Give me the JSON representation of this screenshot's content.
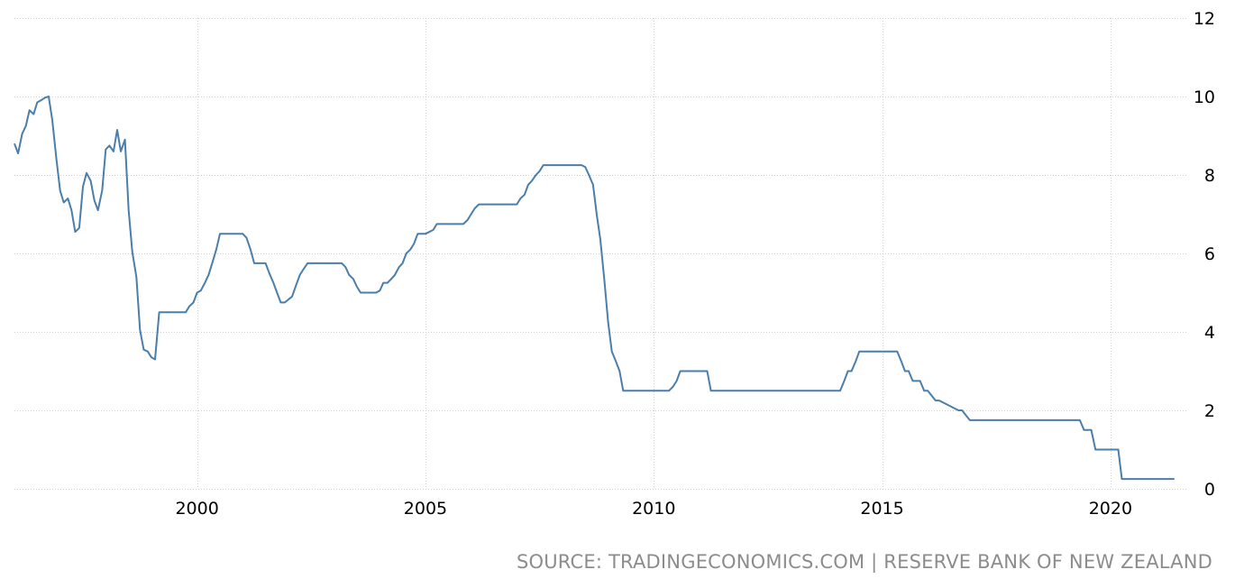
{
  "chart_data": {
    "type": "line",
    "title": "",
    "xlabel": "",
    "ylabel": "",
    "xlim": [
      1996.0,
      2021.7
    ],
    "ylim": [
      0,
      12
    ],
    "x_ticks": [
      2000,
      2005,
      2010,
      2015,
      2020
    ],
    "x_tick_labels": [
      "2000",
      "2005",
      "2010",
      "2015",
      "2020"
    ],
    "y_ticks": [
      0,
      2,
      4,
      6,
      8,
      10,
      12
    ],
    "y_tick_labels": [
      "0",
      "2",
      "4",
      "6",
      "8",
      "10",
      "12"
    ],
    "y_axis_position": "right",
    "grid": true,
    "legend": "none",
    "line_color": "#4a7eab",
    "series": [
      {
        "x": [
          1996.0,
          1996.08,
          1996.17,
          1996.25,
          1996.33,
          1996.42,
          1996.5,
          1996.58,
          1996.67,
          1996.75,
          1996.83,
          1996.92,
          1997.0,
          1997.08,
          1997.17,
          1997.25,
          1997.33,
          1997.42,
          1997.5,
          1997.58,
          1997.67,
          1997.75,
          1997.83,
          1997.92,
          1998.0,
          1998.08,
          1998.17,
          1998.25,
          1998.33,
          1998.42,
          1998.5,
          1998.58,
          1998.67,
          1998.75,
          1998.83,
          1998.92,
          1999.0,
          1999.08,
          1999.17,
          1999.25,
          1999.33,
          1999.42,
          1999.5,
          1999.67,
          1999.75,
          1999.83,
          1999.92,
          2000.0,
          2000.08,
          2000.17,
          2000.25,
          2000.33,
          2000.42,
          2000.5,
          2001.0,
          2001.08,
          2001.17,
          2001.25,
          2001.33,
          2001.5,
          2001.58,
          2001.67,
          2001.75,
          2001.83,
          2001.92,
          2002.08,
          2002.17,
          2002.25,
          2002.33,
          2002.42,
          2002.5,
          2002.58,
          2003.17,
          2003.25,
          2003.33,
          2003.42,
          2003.5,
          2003.58,
          2003.92,
          2004.0,
          2004.08,
          2004.17,
          2004.25,
          2004.33,
          2004.42,
          2004.5,
          2004.58,
          2004.67,
          2004.75,
          2004.83,
          2004.92,
          2005.0,
          2005.17,
          2005.25,
          2005.33,
          2005.83,
          2005.92,
          2006.0,
          2006.08,
          2006.17,
          2007.0,
          2007.08,
          2007.17,
          2007.25,
          2007.33,
          2007.42,
          2007.5,
          2007.58,
          2007.67,
          2008.42,
          2008.5,
          2008.58,
          2008.67,
          2008.75,
          2008.83,
          2008.92,
          2009.0,
          2009.08,
          2009.17,
          2009.25,
          2009.33,
          2009.42,
          2010.33,
          2010.42,
          2010.5,
          2010.58,
          2010.67,
          2011.17,
          2011.25,
          2014.08,
          2014.17,
          2014.25,
          2014.33,
          2014.42,
          2014.5,
          2014.58,
          2015.33,
          2015.42,
          2015.5,
          2015.58,
          2015.67,
          2015.83,
          2015.92,
          2016.0,
          2016.17,
          2016.25,
          2016.67,
          2016.75,
          2016.92,
          2017.0,
          2019.33,
          2019.42,
          2019.58,
          2019.67,
          2020.17,
          2020.25,
          2021.4
        ],
        "values": [
          8.8,
          8.55,
          9.05,
          9.25,
          9.65,
          9.55,
          9.85,
          9.9,
          9.97,
          10.0,
          9.4,
          8.4,
          7.6,
          7.3,
          7.4,
          7.1,
          6.55,
          6.65,
          7.7,
          8.05,
          7.85,
          7.35,
          7.1,
          7.6,
          8.65,
          8.75,
          8.6,
          9.15,
          8.6,
          8.9,
          7.1,
          6.05,
          5.4,
          4.05,
          3.55,
          3.5,
          3.35,
          3.3,
          4.5,
          4.5,
          4.5,
          4.5,
          4.5,
          4.5,
          4.5,
          4.65,
          4.75,
          5.0,
          5.05,
          5.25,
          5.45,
          5.75,
          6.1,
          6.5,
          6.5,
          6.4,
          6.1,
          5.75,
          5.75,
          5.75,
          5.5,
          5.25,
          5.0,
          4.75,
          4.75,
          4.9,
          5.2,
          5.45,
          5.6,
          5.75,
          5.75,
          5.75,
          5.75,
          5.65,
          5.45,
          5.35,
          5.15,
          5.0,
          5.0,
          5.05,
          5.25,
          5.25,
          5.35,
          5.45,
          5.65,
          5.75,
          6.0,
          6.1,
          6.25,
          6.5,
          6.5,
          6.5,
          6.6,
          6.75,
          6.75,
          6.75,
          6.85,
          7.0,
          7.15,
          7.25,
          7.25,
          7.4,
          7.5,
          7.75,
          7.85,
          8.0,
          8.1,
          8.25,
          8.25,
          8.25,
          8.2,
          8.0,
          7.75,
          7.0,
          6.35,
          5.3,
          4.25,
          3.5,
          3.25,
          3.0,
          2.5,
          2.5,
          2.5,
          2.6,
          2.75,
          3.0,
          3.0,
          3.0,
          2.5,
          2.5,
          2.75,
          3.0,
          3.0,
          3.25,
          3.5,
          3.5,
          3.5,
          3.25,
          3.0,
          3.0,
          2.75,
          2.75,
          2.5,
          2.5,
          2.25,
          2.25,
          2.0,
          2.0,
          1.75,
          1.75,
          1.75,
          1.5,
          1.5,
          1.0,
          1.0,
          0.25,
          0.25
        ]
      }
    ]
  },
  "source_text": "SOURCE: TRADINGECONOMICS.COM | RESERVE BANK OF NEW ZEALAND"
}
